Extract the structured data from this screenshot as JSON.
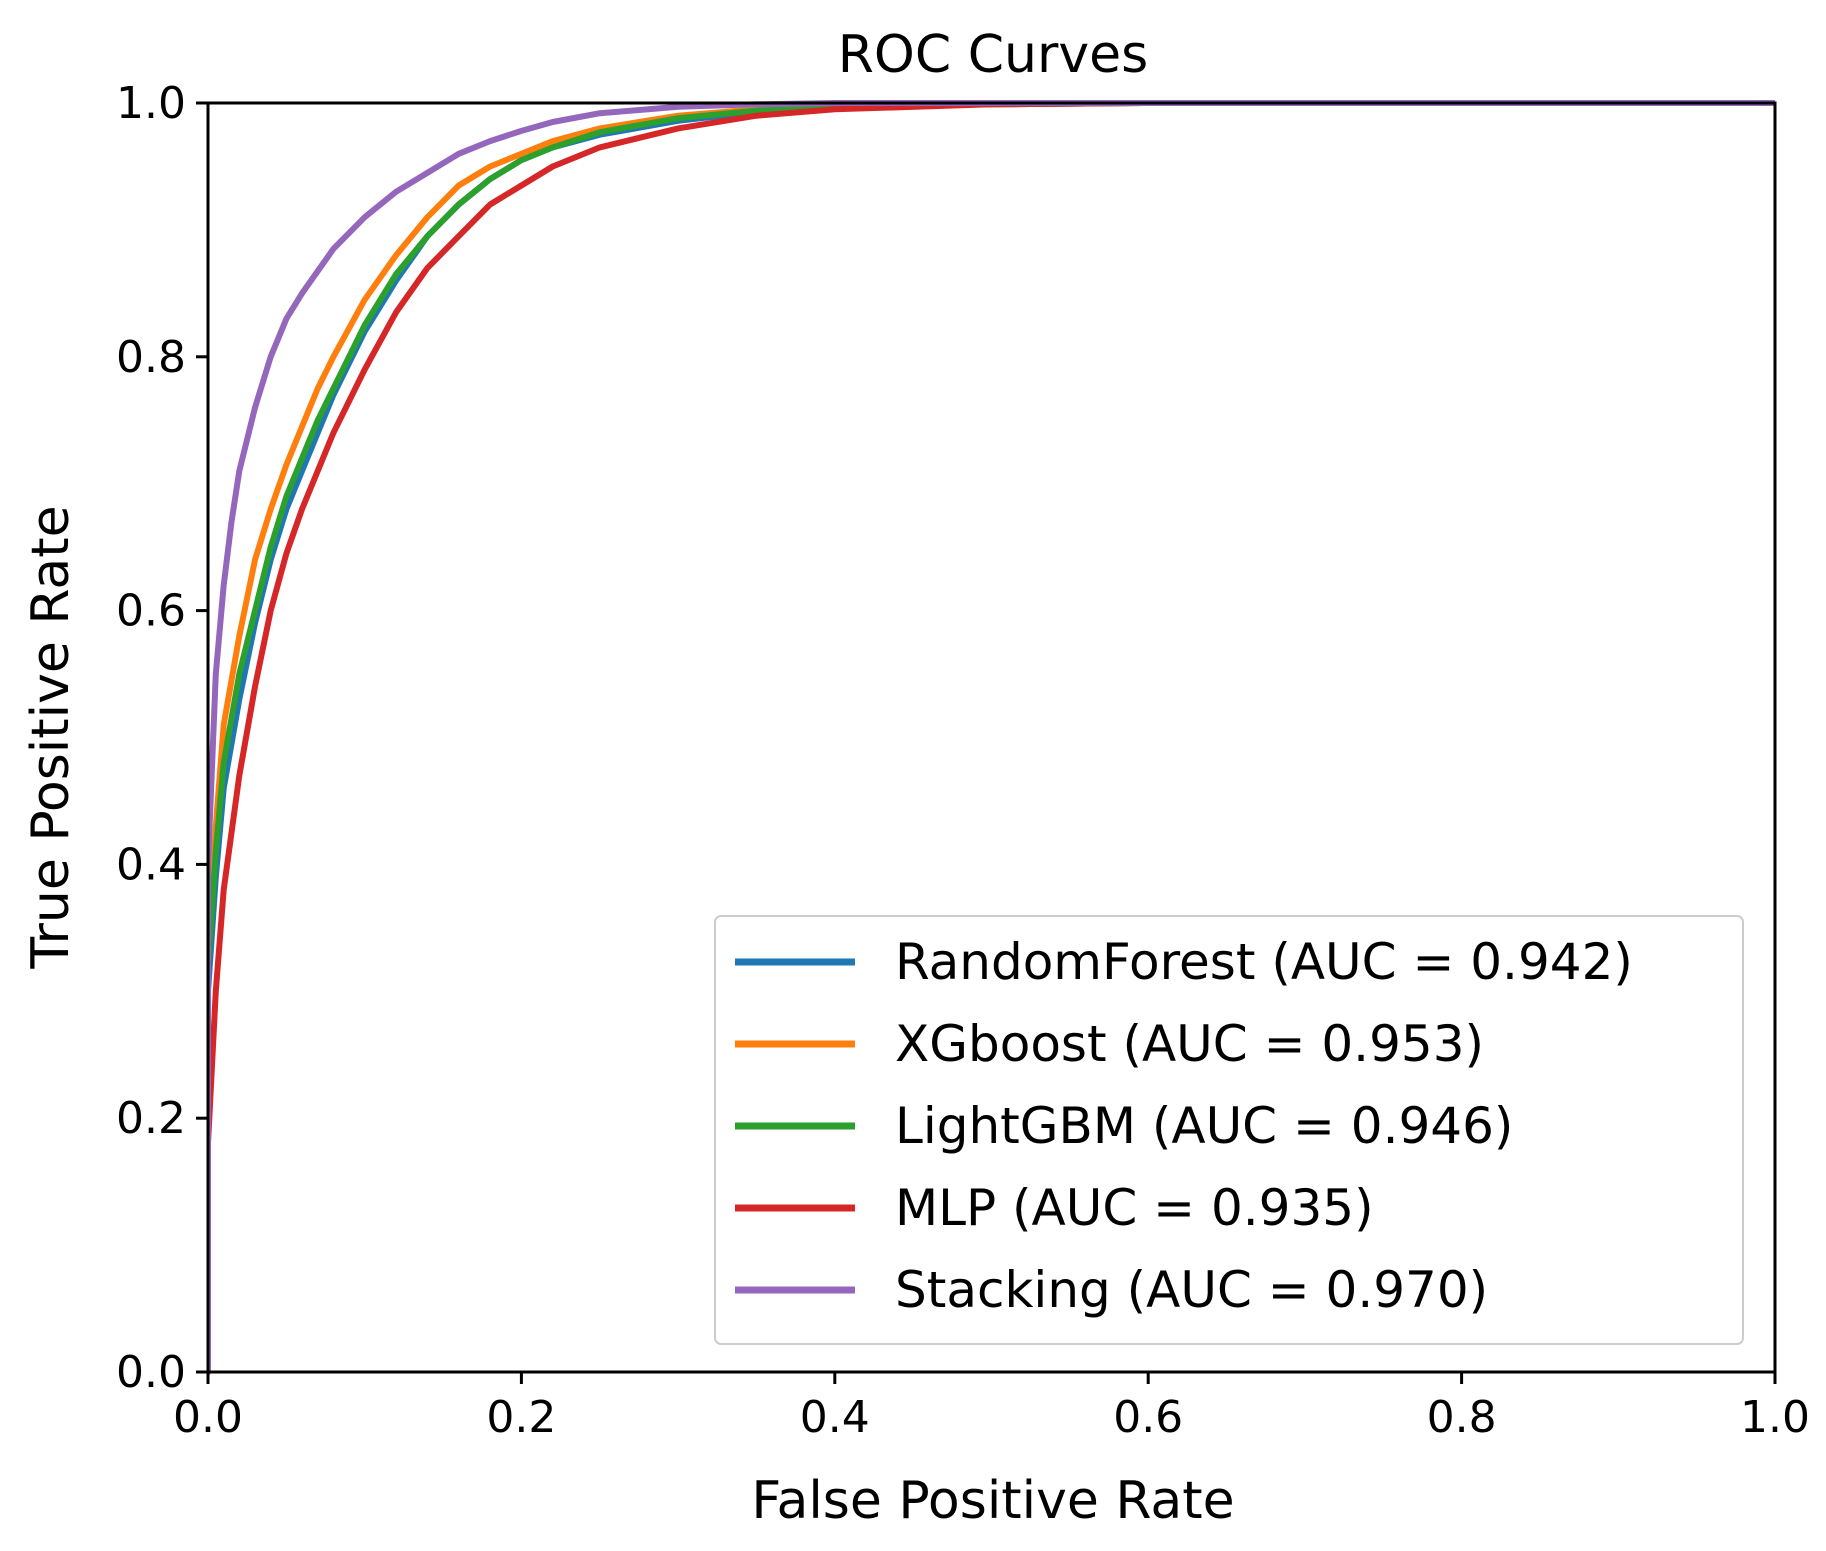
{
  "chart_data": {
    "type": "line",
    "title": "ROC Curves",
    "xlabel": "False Positive Rate",
    "ylabel": "True Positive Rate",
    "xlim": [
      0.0,
      1.0
    ],
    "ylim": [
      0.0,
      1.0
    ],
    "xticks": [
      "0.0",
      "0.2",
      "0.4",
      "0.6",
      "0.8",
      "1.0"
    ],
    "yticks": [
      "0.0",
      "0.2",
      "0.4",
      "0.6",
      "0.8",
      "1.0"
    ],
    "grid": false,
    "legend_position": "lower-right",
    "series": [
      {
        "name": "RandomForest",
        "legend_label": "RandomForest (AUC = 0.942)",
        "auc": 0.942,
        "color": "#1f77b4",
        "x": [
          0.0,
          0.0,
          0.005,
          0.01,
          0.02,
          0.03,
          0.04,
          0.05,
          0.06,
          0.07,
          0.08,
          0.1,
          0.12,
          0.14,
          0.16,
          0.18,
          0.2,
          0.22,
          0.25,
          0.3,
          0.35,
          0.4,
          0.5,
          0.6,
          0.7,
          0.8,
          0.9,
          1.0
        ],
        "y": [
          0.0,
          0.3,
          0.39,
          0.46,
          0.53,
          0.59,
          0.64,
          0.68,
          0.71,
          0.74,
          0.77,
          0.82,
          0.86,
          0.895,
          0.92,
          0.94,
          0.955,
          0.965,
          0.975,
          0.986,
          0.993,
          0.997,
          0.999,
          1.0,
          1.0,
          1.0,
          1.0,
          1.0
        ]
      },
      {
        "name": "XGboost",
        "legend_label": "XGboost (AUC = 0.953)",
        "auc": 0.953,
        "color": "#ff7f0e",
        "x": [
          0.0,
          0.0,
          0.005,
          0.01,
          0.02,
          0.03,
          0.04,
          0.05,
          0.06,
          0.07,
          0.08,
          0.1,
          0.12,
          0.14,
          0.16,
          0.18,
          0.2,
          0.22,
          0.25,
          0.3,
          0.35,
          0.4,
          0.5,
          0.6,
          0.7,
          0.8,
          0.9,
          1.0
        ],
        "y": [
          0.0,
          0.34,
          0.43,
          0.51,
          0.58,
          0.64,
          0.68,
          0.715,
          0.745,
          0.775,
          0.8,
          0.845,
          0.88,
          0.91,
          0.935,
          0.95,
          0.96,
          0.97,
          0.98,
          0.99,
          0.995,
          0.998,
          1.0,
          1.0,
          1.0,
          1.0,
          1.0,
          1.0
        ]
      },
      {
        "name": "LightGBM",
        "legend_label": "LightGBM (AUC = 0.946)",
        "auc": 0.946,
        "color": "#2ca02c",
        "x": [
          0.0,
          0.0,
          0.005,
          0.01,
          0.02,
          0.03,
          0.04,
          0.05,
          0.06,
          0.07,
          0.08,
          0.1,
          0.12,
          0.14,
          0.16,
          0.18,
          0.2,
          0.22,
          0.25,
          0.3,
          0.35,
          0.4,
          0.5,
          0.6,
          0.7,
          0.8,
          0.9,
          1.0
        ],
        "y": [
          0.0,
          0.32,
          0.41,
          0.48,
          0.55,
          0.6,
          0.65,
          0.69,
          0.72,
          0.75,
          0.775,
          0.825,
          0.865,
          0.895,
          0.92,
          0.94,
          0.955,
          0.965,
          0.977,
          0.988,
          0.994,
          0.997,
          0.999,
          1.0,
          1.0,
          1.0,
          1.0,
          1.0
        ]
      },
      {
        "name": "MLP",
        "legend_label": "MLP (AUC = 0.935)",
        "auc": 0.935,
        "color": "#d62728",
        "x": [
          0.0,
          0.0,
          0.005,
          0.01,
          0.02,
          0.03,
          0.04,
          0.05,
          0.06,
          0.07,
          0.08,
          0.1,
          0.12,
          0.14,
          0.16,
          0.18,
          0.2,
          0.22,
          0.25,
          0.3,
          0.35,
          0.4,
          0.5,
          0.6,
          0.7,
          0.8,
          0.9,
          1.0
        ],
        "y": [
          0.0,
          0.18,
          0.3,
          0.38,
          0.47,
          0.54,
          0.6,
          0.645,
          0.68,
          0.71,
          0.74,
          0.79,
          0.835,
          0.87,
          0.895,
          0.92,
          0.935,
          0.95,
          0.965,
          0.98,
          0.99,
          0.995,
          0.999,
          1.0,
          1.0,
          1.0,
          1.0,
          1.0
        ]
      },
      {
        "name": "Stacking",
        "legend_label": "Stacking (AUC = 0.970)",
        "auc": 0.97,
        "color": "#9467bd",
        "x": [
          0.0,
          0.0,
          0.005,
          0.01,
          0.015,
          0.02,
          0.03,
          0.04,
          0.05,
          0.06,
          0.08,
          0.1,
          0.12,
          0.14,
          0.16,
          0.18,
          0.2,
          0.22,
          0.25,
          0.3,
          0.35,
          0.4,
          0.5,
          0.6,
          0.7,
          0.8,
          0.9,
          1.0
        ],
        "y": [
          0.0,
          0.4,
          0.55,
          0.62,
          0.67,
          0.71,
          0.76,
          0.8,
          0.83,
          0.85,
          0.885,
          0.91,
          0.93,
          0.945,
          0.96,
          0.97,
          0.978,
          0.985,
          0.992,
          0.997,
          0.999,
          1.0,
          1.0,
          1.0,
          1.0,
          1.0,
          1.0,
          1.0
        ]
      }
    ]
  }
}
